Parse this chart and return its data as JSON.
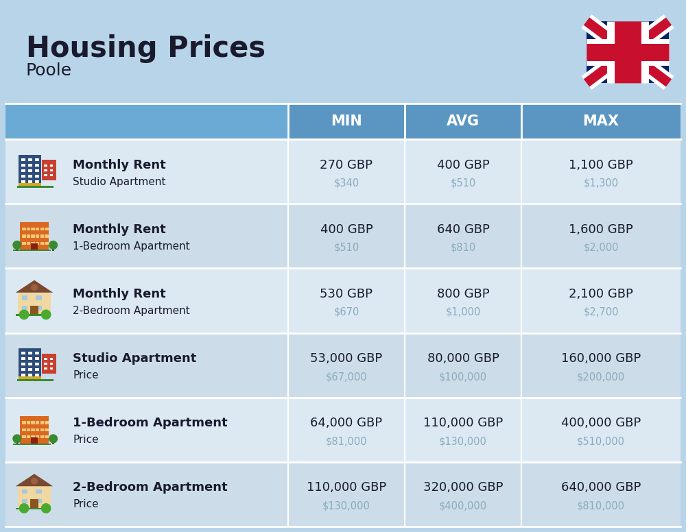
{
  "title": "Housing Prices",
  "subtitle": "Poole",
  "background_color": "#b8d4e8",
  "header_bg_color": "#5b96c2",
  "row_bg_even": "#dce9f3",
  "row_bg_odd": "#ccdde9",
  "header_text_color": "#ffffff",
  "main_text_color": "#1a1a2e",
  "sub_text_color": "#8aabbc",
  "columns": [
    "MIN",
    "AVG",
    "MAX"
  ],
  "rows": [
    {
      "bold_label": "Monthly Rent",
      "sub_label": "Studio Apartment",
      "min_gbp": "270 GBP",
      "min_usd": "$340",
      "avg_gbp": "400 GBP",
      "avg_usd": "$510",
      "max_gbp": "1,100 GBP",
      "max_usd": "$1,300",
      "icon_type": "blue_tall"
    },
    {
      "bold_label": "Monthly Rent",
      "sub_label": "1-Bedroom Apartment",
      "min_gbp": "400 GBP",
      "min_usd": "$510",
      "avg_gbp": "640 GBP",
      "avg_usd": "$810",
      "max_gbp": "1,600 GBP",
      "max_usd": "$2,000",
      "icon_type": "orange_mid"
    },
    {
      "bold_label": "Monthly Rent",
      "sub_label": "2-Bedroom Apartment",
      "min_gbp": "530 GBP",
      "min_usd": "$670",
      "avg_gbp": "800 GBP",
      "avg_usd": "$1,000",
      "max_gbp": "2,100 GBP",
      "max_usd": "$2,700",
      "icon_type": "beige_house"
    },
    {
      "bold_label": "Studio Apartment",
      "sub_label": "Price",
      "min_gbp": "53,000 GBP",
      "min_usd": "$67,000",
      "avg_gbp": "80,000 GBP",
      "avg_usd": "$100,000",
      "max_gbp": "160,000 GBP",
      "max_usd": "$200,000",
      "icon_type": "blue_tall"
    },
    {
      "bold_label": "1-Bedroom Apartment",
      "sub_label": "Price",
      "min_gbp": "64,000 GBP",
      "min_usd": "$81,000",
      "avg_gbp": "110,000 GBP",
      "avg_usd": "$130,000",
      "max_gbp": "400,000 GBP",
      "max_usd": "$510,000",
      "icon_type": "orange_mid"
    },
    {
      "bold_label": "2-Bedroom Apartment",
      "sub_label": "Price",
      "min_gbp": "110,000 GBP",
      "min_usd": "$130,000",
      "avg_gbp": "320,000 GBP",
      "avg_usd": "$400,000",
      "max_gbp": "640,000 GBP",
      "max_usd": "$810,000",
      "icon_type": "beige_house"
    }
  ]
}
